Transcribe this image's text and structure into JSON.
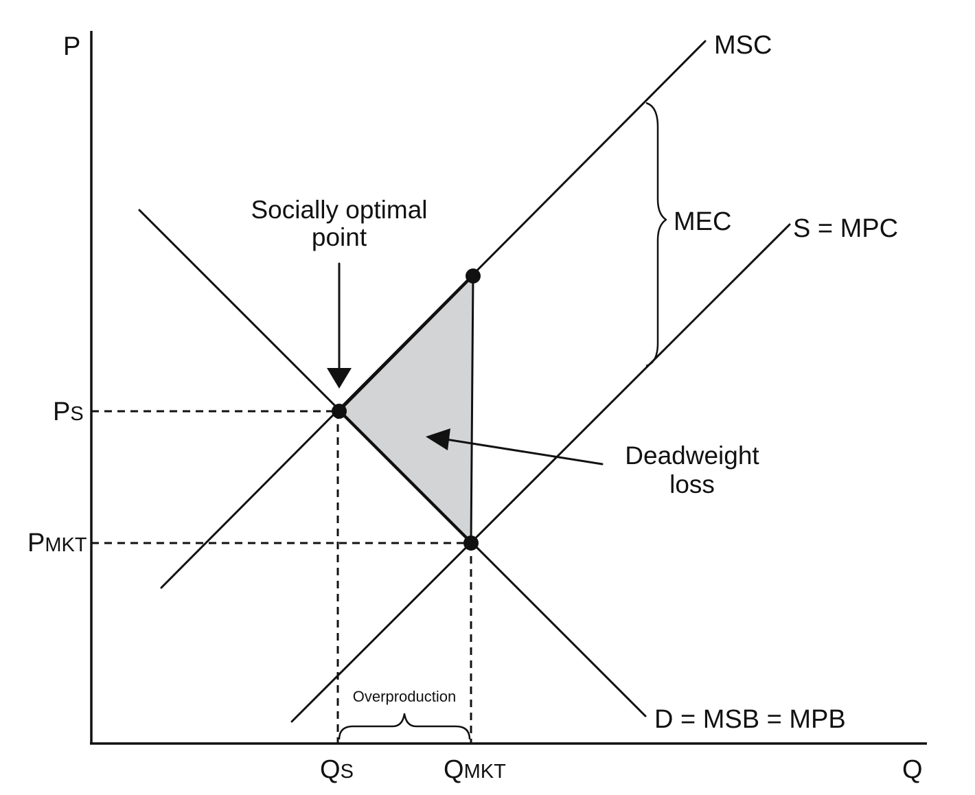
{
  "axes": {
    "y_label": "P",
    "x_label": "Q"
  },
  "curves": {
    "msc": "MSC",
    "supply": "S = MPC",
    "demand": "D = MSB = MPB",
    "mec": "MEC"
  },
  "ticks": {
    "ps_main": "P",
    "ps_sub": "S",
    "pmkt_main": "P",
    "pmkt_sub": "MKT",
    "qs_main": "Q",
    "qs_sub": "S",
    "qmkt_main": "Q",
    "qmkt_sub": "MKT"
  },
  "annotations": {
    "optimal_line1": "Socially optimal",
    "optimal_line2": "point",
    "deadweight_line1": "Deadweight",
    "deadweight_line2": "loss",
    "overproduction": "Overproduction"
  },
  "colors": {
    "ink": "#111111",
    "deadweight_fill": "#d3d4d6",
    "background": "#ffffff"
  }
}
